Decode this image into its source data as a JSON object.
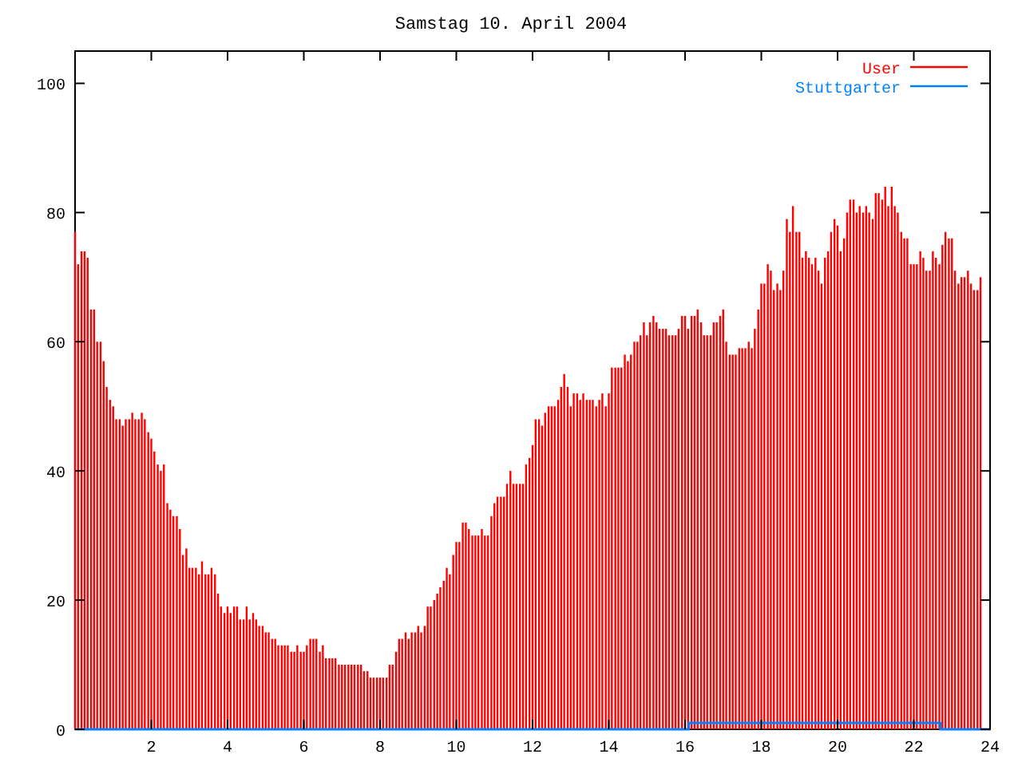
{
  "chart_data": {
    "type": "bar",
    "title": "Samstag 10. April 2004",
    "x": [
      0,
      0.08,
      0.17,
      0.25,
      0.33,
      0.42,
      0.5,
      0.58,
      0.67,
      0.75,
      0.83,
      0.92,
      1,
      1.08,
      1.17,
      1.25,
      1.33,
      1.42,
      1.5,
      1.58,
      1.67,
      1.75,
      1.83,
      1.92,
      2,
      2.08,
      2.17,
      2.25,
      2.33,
      2.42,
      2.5,
      2.58,
      2.67,
      2.75,
      2.83,
      2.92,
      3,
      3.08,
      3.17,
      3.25,
      3.33,
      3.42,
      3.5,
      3.58,
      3.67,
      3.75,
      3.83,
      3.92,
      4,
      4.08,
      4.17,
      4.25,
      4.33,
      4.42,
      4.5,
      4.58,
      4.67,
      4.75,
      4.83,
      4.92,
      5,
      5.08,
      5.17,
      5.25,
      5.33,
      5.42,
      5.5,
      5.58,
      5.67,
      5.75,
      5.83,
      5.92,
      6,
      6.08,
      6.17,
      6.25,
      6.33,
      6.42,
      6.5,
      6.58,
      6.67,
      6.75,
      6.83,
      6.92,
      7,
      7.08,
      7.17,
      7.25,
      7.33,
      7.42,
      7.5,
      7.58,
      7.67,
      7.75,
      7.83,
      7.92,
      8,
      8.08,
      8.17,
      8.25,
      8.33,
      8.42,
      8.5,
      8.58,
      8.67,
      8.75,
      8.83,
      8.92,
      9,
      9.08,
      9.17,
      9.25,
      9.33,
      9.42,
      9.5,
      9.58,
      9.67,
      9.75,
      9.83,
      9.92,
      10,
      10.08,
      10.17,
      10.25,
      10.33,
      10.42,
      10.5,
      10.58,
      10.67,
      10.75,
      10.83,
      10.92,
      11,
      11.08,
      11.17,
      11.25,
      11.33,
      11.42,
      11.5,
      11.58,
      11.67,
      11.75,
      11.83,
      11.92,
      12,
      12.08,
      12.17,
      12.25,
      12.33,
      12.42,
      12.5,
      12.58,
      12.67,
      12.75,
      12.83,
      12.92,
      13,
      13.08,
      13.17,
      13.25,
      13.33,
      13.42,
      13.5,
      13.58,
      13.67,
      13.75,
      13.83,
      13.92,
      14,
      14.08,
      14.17,
      14.25,
      14.33,
      14.42,
      14.5,
      14.58,
      14.67,
      14.75,
      14.83,
      14.92,
      15,
      15.08,
      15.17,
      15.25,
      15.33,
      15.42,
      15.5,
      15.58,
      15.67,
      15.75,
      15.83,
      15.92,
      16,
      16.08,
      16.17,
      16.25,
      16.33,
      16.42,
      16.5,
      16.58,
      16.67,
      16.75,
      16.83,
      16.92,
      17,
      17.08,
      17.17,
      17.25,
      17.33,
      17.42,
      17.5,
      17.58,
      17.67,
      17.75,
      17.83,
      17.92,
      18,
      18.08,
      18.17,
      18.25,
      18.33,
      18.42,
      18.5,
      18.58,
      18.67,
      18.75,
      18.83,
      18.92,
      19,
      19.08,
      19.17,
      19.25,
      19.33,
      19.42,
      19.5,
      19.58,
      19.67,
      19.75,
      19.83,
      19.92,
      20,
      20.08,
      20.17,
      20.25,
      20.33,
      20.42,
      20.5,
      20.58,
      20.67,
      20.75,
      20.83,
      20.92,
      21,
      21.08,
      21.17,
      21.25,
      21.33,
      21.42,
      21.5,
      21.58,
      21.67,
      21.75,
      21.83,
      21.92,
      22,
      22.08,
      22.17,
      22.25,
      22.33,
      22.42,
      22.5,
      22.58,
      22.67,
      22.75,
      22.83,
      22.92,
      23,
      23.08,
      23.17,
      23.25,
      23.33,
      23.42,
      23.5,
      23.58,
      23.67,
      23.75
    ],
    "series": [
      {
        "name": "User",
        "color": "#ff0000",
        "values": [
          77,
          72,
          74,
          74,
          73,
          65,
          65,
          60,
          60,
          57,
          53,
          51,
          50,
          48,
          48,
          47,
          48,
          48,
          49,
          48,
          48,
          49,
          48,
          46,
          45,
          43,
          41,
          40,
          41,
          35,
          34,
          33,
          33,
          31,
          27,
          28,
          25,
          25,
          25,
          24,
          26,
          24,
          24,
          25,
          24,
          21,
          19,
          18,
          19,
          18,
          19,
          19,
          17,
          17,
          19,
          17,
          18,
          17,
          16,
          16,
          15,
          15,
          14,
          14,
          13,
          13,
          13,
          13,
          12,
          12,
          13,
          12,
          12,
          13,
          14,
          14,
          14,
          12,
          13,
          11,
          11,
          11,
          11,
          10,
          10,
          10,
          10,
          10,
          10,
          10,
          10,
          9,
          9,
          8,
          8,
          8,
          8,
          8,
          8,
          10,
          10,
          12,
          14,
          14,
          15,
          14,
          15,
          15,
          16,
          15,
          16,
          19,
          19,
          20,
          21,
          22,
          23,
          25,
          24,
          27,
          29,
          29,
          32,
          32,
          31,
          30,
          30,
          30,
          31,
          30,
          30,
          33,
          35,
          36,
          36,
          36,
          38,
          40,
          38,
          38,
          38,
          38,
          41,
          42,
          44,
          48,
          48,
          47,
          49,
          50,
          50,
          50,
          51,
          53,
          55,
          53,
          50,
          52,
          52,
          51,
          52,
          51,
          51,
          51,
          50,
          51,
          52,
          50,
          52,
          56,
          56,
          56,
          56,
          58,
          57,
          58,
          60,
          60,
          61,
          63,
          61,
          63,
          64,
          63,
          62,
          62,
          62,
          61,
          61,
          61,
          62,
          64,
          64,
          62,
          64,
          64,
          65,
          63,
          61,
          61,
          61,
          63,
          63,
          64,
          65,
          60,
          58,
          58,
          58,
          59,
          59,
          59,
          60,
          59,
          62,
          65,
          69,
          69,
          72,
          71,
          68,
          69,
          68,
          71,
          79,
          77,
          81,
          77,
          77,
          73,
          74,
          73,
          72,
          73,
          71,
          69,
          73,
          74,
          77,
          79,
          78,
          74,
          76,
          80,
          82,
          82,
          80,
          81,
          80,
          81,
          80,
          79,
          83,
          83,
          82,
          84,
          81,
          84,
          81,
          80,
          77,
          76,
          76,
          72,
          72,
          72,
          74,
          73,
          71,
          71,
          74,
          73,
          72,
          75,
          77,
          76,
          76,
          71,
          69,
          70,
          70,
          71,
          69,
          68,
          68,
          70
        ]
      },
      {
        "name": "Stuttgarter",
        "color": "#0080ff",
        "type": "line",
        "x": [
          0,
          16.1,
          16.1,
          22.7,
          22.7,
          24
        ],
        "values": [
          0,
          0,
          1,
          1,
          0,
          0
        ]
      }
    ],
    "xlim": [
      0,
      24
    ],
    "xticks": [
      2,
      4,
      6,
      8,
      10,
      12,
      14,
      16,
      18,
      20,
      22,
      24
    ],
    "ylim": [
      0,
      105
    ],
    "yticks": [
      0,
      20,
      40,
      60,
      80,
      100
    ],
    "legend": "top right"
  }
}
